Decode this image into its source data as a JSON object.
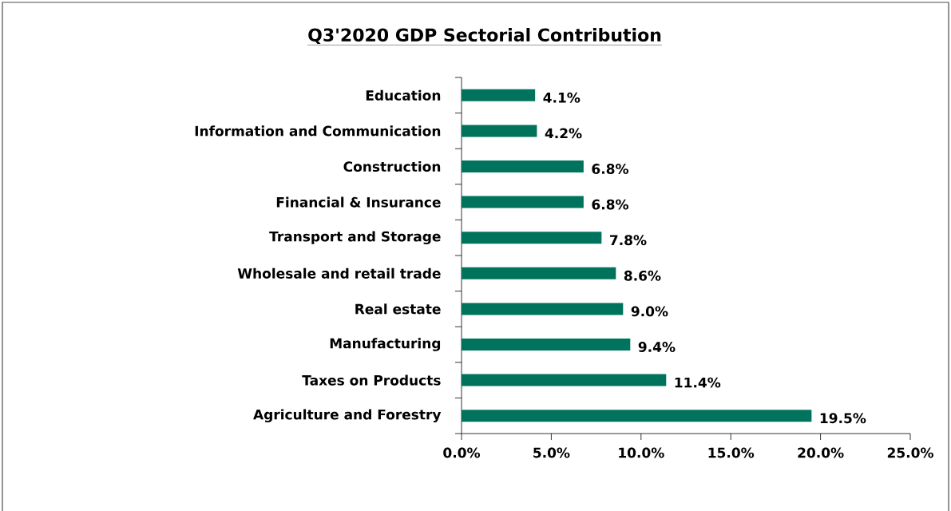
{
  "chart_data": {
    "type": "bar",
    "orientation": "horizontal",
    "title": "Q3'2020 GDP Sectorial Contribution",
    "categories": [
      "Education",
      "Information and Communication",
      "Construction",
      "Financial & Insurance",
      "Transport and Storage",
      "Wholesale and retail trade",
      "Real estate",
      "Manufacturing",
      "Taxes on Products",
      "Agriculture and Forestry"
    ],
    "values": [
      4.1,
      4.2,
      6.8,
      6.8,
      7.8,
      8.6,
      9.0,
      9.4,
      11.4,
      19.5
    ],
    "value_labels": [
      "4.1%",
      "4.2%",
      "6.8%",
      "6.8%",
      "7.8%",
      "8.6%",
      "9.0%",
      "9.4%",
      "11.4%",
      "19.5%"
    ],
    "color": "#00735c",
    "xlim": [
      0,
      25
    ],
    "xticks": [
      {
        "value": 0,
        "label": "0.0%"
      },
      {
        "value": 5,
        "label": "5.0%"
      },
      {
        "value": 10,
        "label": "10.0%"
      },
      {
        "value": 15,
        "label": "15.0%"
      },
      {
        "value": 20,
        "label": "20.0%"
      },
      {
        "value": 25,
        "label": "25.0%"
      }
    ]
  }
}
